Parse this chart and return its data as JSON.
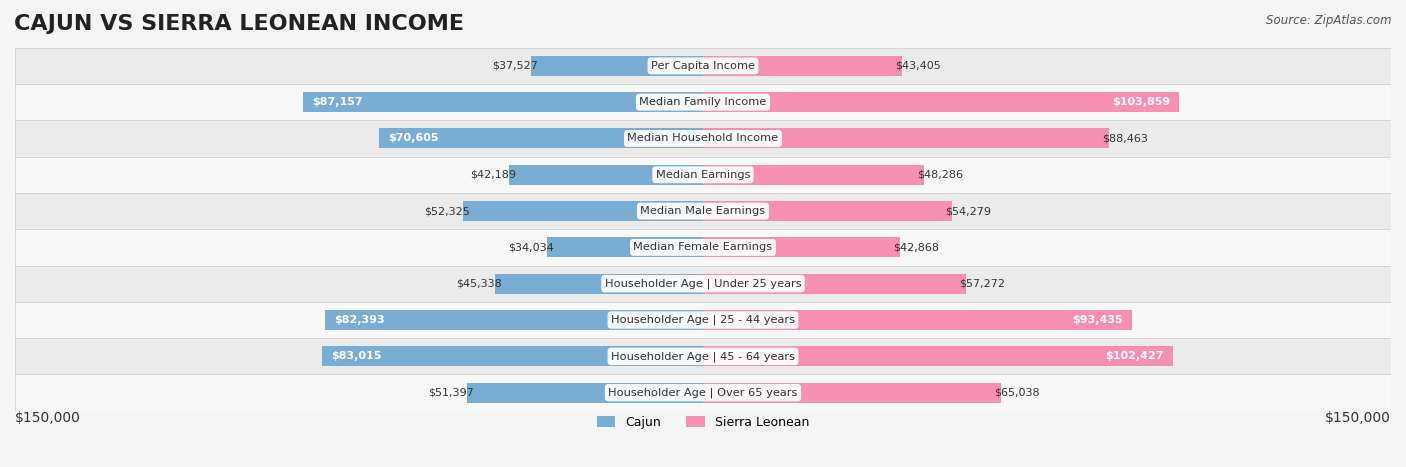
{
  "title": "CAJUN VS SIERRA LEONEAN INCOME",
  "source": "Source: ZipAtlas.com",
  "categories": [
    "Per Capita Income",
    "Median Family Income",
    "Median Household Income",
    "Median Earnings",
    "Median Male Earnings",
    "Median Female Earnings",
    "Householder Age | Under 25 years",
    "Householder Age | 25 - 44 years",
    "Householder Age | 45 - 64 years",
    "Householder Age | Over 65 years"
  ],
  "cajun_values": [
    37527,
    87157,
    70605,
    42189,
    52325,
    34034,
    45338,
    82393,
    83015,
    51397
  ],
  "sierra_values": [
    43405,
    103859,
    88463,
    48286,
    54279,
    42868,
    57272,
    93435,
    102427,
    65038
  ],
  "cajun_labels": [
    "$37,527",
    "$87,157",
    "$70,605",
    "$42,189",
    "$52,325",
    "$34,034",
    "$45,338",
    "$82,393",
    "$83,015",
    "$51,397"
  ],
  "sierra_labels": [
    "$43,405",
    "$103,859",
    "$88,463",
    "$48,286",
    "$54,279",
    "$42,868",
    "$57,272",
    "$93,435",
    "$102,427",
    "$65,038"
  ],
  "max_value": 150000,
  "cajun_color": "#7aadd4",
  "cajun_color_dark": "#5b9dc8",
  "sierra_color": "#f78fb3",
  "sierra_color_dark": "#f06090",
  "bg_color": "#f5f5f5",
  "row_bg": "#ffffff",
  "row_alt_bg": "#f0f0f0",
  "xlabel_left": "$150,000",
  "xlabel_right": "$150,000",
  "legend_cajun": "Cajun",
  "legend_sierra": "Sierra Leonean",
  "title_fontsize": 16,
  "label_fontsize": 9,
  "axis_fontsize": 10
}
